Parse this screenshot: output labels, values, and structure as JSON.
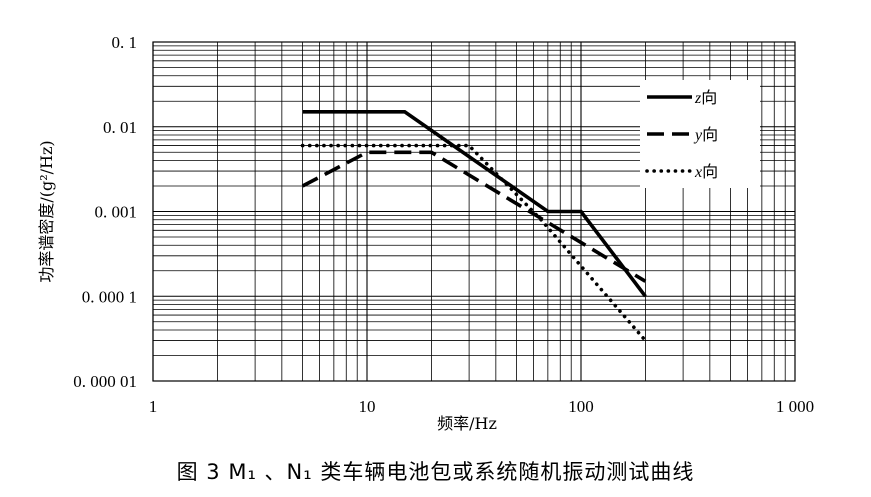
{
  "caption": "图 3  M₁ 、N₁ 类车辆电池包或系统随机振动测试曲线",
  "chart_data": {
    "type": "line",
    "xlabel": "频率/Hz",
    "ylabel": "功率谱密度/(g²/Hz)",
    "xscale": "log",
    "yscale": "log",
    "xlim": [
      1,
      1000
    ],
    "ylim": [
      1e-05,
      0.1
    ],
    "grid": true,
    "legend_position": "top-right",
    "x_tick_labels": [
      "1",
      "10",
      "100",
      "1 000"
    ],
    "y_tick_labels": [
      "0. 1",
      "0. 01",
      "0. 001",
      "0. 000 1",
      "0. 000 01"
    ],
    "series": [
      {
        "name": "z向",
        "axis_letter": "z",
        "suffix": "向",
        "style": "solid",
        "x": [
          5,
          15,
          70,
          100,
          200
        ],
        "y": [
          0.015,
          0.015,
          0.001,
          0.001,
          0.0001
        ]
      },
      {
        "name": "y向",
        "axis_letter": "y",
        "suffix": "向",
        "style": "dashed",
        "x": [
          5,
          10,
          20,
          200
        ],
        "y": [
          0.002,
          0.005,
          0.005,
          0.00015
        ]
      },
      {
        "name": "x向",
        "axis_letter": "x",
        "suffix": "向",
        "style": "dotted",
        "x": [
          5,
          20,
          30,
          65,
          200
        ],
        "y": [
          0.006,
          0.006,
          0.006,
          0.0008,
          3e-05
        ]
      }
    ]
  }
}
